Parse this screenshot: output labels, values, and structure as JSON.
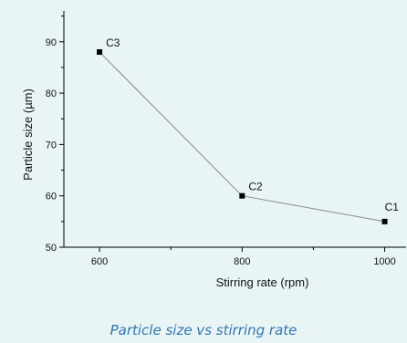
{
  "chart_data": {
    "type": "line",
    "title": "",
    "xlabel": "Stirring rate (rpm)",
    "ylabel": "Particle size (µm)",
    "xlim": [
      550,
      1030
    ],
    "ylim": [
      50,
      96
    ],
    "x_ticks": [
      600,
      800,
      1000
    ],
    "y_ticks": [
      50,
      60,
      70,
      80,
      90
    ],
    "grid": false,
    "legend": "none",
    "series": [
      {
        "x": [
          600,
          800,
          1000
        ],
        "y": [
          88,
          60,
          55
        ],
        "point_labels": [
          "C3",
          "C2",
          "C1"
        ]
      }
    ],
    "colors": {
      "line": "#888888",
      "marker": "#000000",
      "axis": "#000000"
    }
  },
  "caption": "Particle size vs stirring rate"
}
